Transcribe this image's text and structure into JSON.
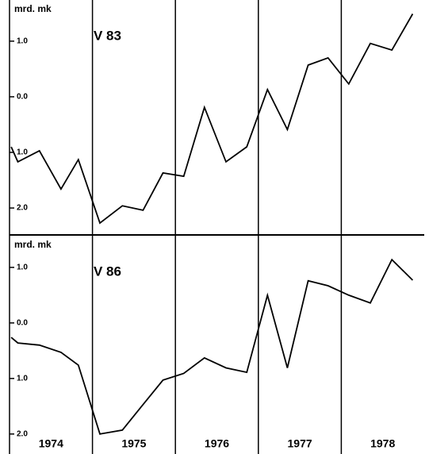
{
  "chart_data": [
    {
      "type": "line",
      "title": "V 83",
      "y_label": "mrd. mk",
      "xlim": [
        1974,
        1979
      ],
      "ylim": [
        -2.47,
        1.74
      ],
      "yticks": [
        {
          "value": 1,
          "label": "1.0"
        },
        {
          "value": 0,
          "label": "0.0"
        },
        {
          "value": -1,
          "label": "1.0"
        },
        {
          "value": -2,
          "label": "2.0"
        }
      ],
      "series": [
        {
          "color": "#000000",
          "x": [
            1974.02,
            1974.1,
            1974.36,
            1974.62,
            1974.83,
            1975.09,
            1975.36,
            1975.61,
            1975.85,
            1976.1,
            1976.35,
            1976.61,
            1976.86,
            1977.11,
            1977.35,
            1977.6,
            1977.84,
            1978.09,
            1978.35,
            1978.61,
            1978.86
          ],
          "values": [
            -0.9,
            -1.17,
            -0.97,
            -1.66,
            -1.13,
            -2.27,
            -1.96,
            -2.04,
            -1.37,
            -1.43,
            -0.19,
            -1.17,
            -0.9,
            0.13,
            -0.59,
            0.57,
            0.7,
            0.23,
            0.96,
            0.84,
            1.49
          ]
        }
      ]
    },
    {
      "type": "line",
      "title": "V 86",
      "y_label": "mrd. mk",
      "categories": [
        "1974",
        "1975",
        "1976",
        "1977",
        "1978"
      ],
      "xlim": [
        1974,
        1979
      ],
      "ylim": [
        -2.36,
        1.57
      ],
      "yticks": [
        {
          "value": 1,
          "label": "1.0"
        },
        {
          "value": 0,
          "label": "0.0"
        },
        {
          "value": -1,
          "label": "1.0"
        },
        {
          "value": -2,
          "label": "2.0"
        }
      ],
      "series": [
        {
          "color": "#000000",
          "x": [
            1974.02,
            1974.1,
            1974.36,
            1974.62,
            1974.83,
            1975.09,
            1975.36,
            1975.61,
            1975.85,
            1976.1,
            1976.35,
            1976.61,
            1976.86,
            1977.11,
            1977.35,
            1977.6,
            1977.84,
            1978.09,
            1978.35,
            1978.61,
            1978.86
          ],
          "values": [
            -0.26,
            -0.36,
            -0.4,
            -0.53,
            -0.76,
            -2.0,
            -1.93,
            -1.47,
            -1.03,
            -0.91,
            -0.63,
            -0.81,
            -0.89,
            0.5,
            -0.81,
            0.76,
            0.67,
            0.5,
            0.36,
            1.14,
            0.77
          ]
        }
      ]
    }
  ]
}
